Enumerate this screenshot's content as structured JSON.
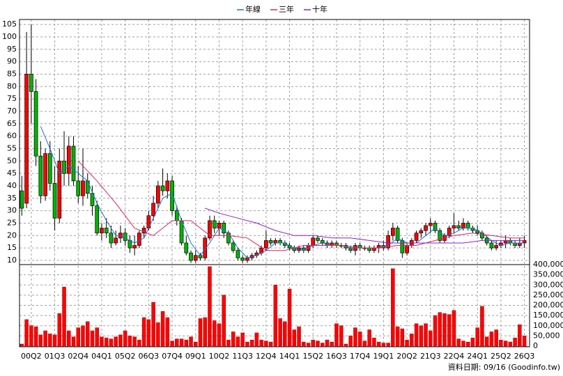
{
  "chart_data": {
    "type": "candlestick",
    "legend": "top",
    "grid": true,
    "up_color": "#ff0000",
    "down_color": "#00b400",
    "xlim": [
      -0.5,
      108.1
    ],
    "xticks": [
      {
        "value": 2,
        "label": "00Q2"
      },
      {
        "value": 7,
        "label": "01Q3"
      },
      {
        "value": 12,
        "label": "02Q4"
      },
      {
        "value": 17,
        "label": "04Q1"
      },
      {
        "value": 22,
        "label": "05Q2"
      },
      {
        "value": 27,
        "label": "06Q3"
      },
      {
        "value": 32,
        "label": "07Q4"
      },
      {
        "value": 37,
        "label": "09Q1"
      },
      {
        "value": 42,
        "label": "10Q2"
      },
      {
        "value": 47,
        "label": "11Q3"
      },
      {
        "value": 52,
        "label": "12Q4"
      },
      {
        "value": 57,
        "label": "14Q1"
      },
      {
        "value": 62,
        "label": "15Q2"
      },
      {
        "value": 67,
        "label": "16Q3"
      },
      {
        "value": 72,
        "label": "17Q4"
      },
      {
        "value": 77,
        "label": "19Q1"
      },
      {
        "value": 82,
        "label": "20Q2"
      },
      {
        "value": 87,
        "label": "21Q3"
      },
      {
        "value": 92,
        "label": "22Q4"
      },
      {
        "value": 97,
        "label": "24Q1"
      },
      {
        "value": 102,
        "label": "25Q2"
      },
      {
        "value": 107,
        "label": "26Q3"
      }
    ],
    "ylim": [
      8.3,
      107
    ],
    "yticks": [
      10,
      15,
      20,
      25,
      30,
      35,
      40,
      45,
      50,
      55,
      60,
      65,
      70,
      75,
      80,
      85,
      90,
      95,
      100,
      105
    ],
    "open": [
      38,
      33,
      85,
      78,
      52,
      36,
      53,
      41,
      27,
      50,
      45,
      56,
      42,
      36,
      42,
      37,
      32,
      21,
      23,
      21,
      17,
      19,
      21,
      18,
      15,
      16,
      21,
      23,
      28,
      33,
      40,
      38,
      42,
      30,
      26,
      17,
      13,
      10,
      12,
      11,
      19,
      26,
      23,
      25,
      21,
      17,
      14,
      11,
      10,
      11,
      12,
      13,
      15,
      18,
      17,
      18,
      17,
      16,
      15,
      14,
      15,
      14,
      16,
      19,
      18,
      17,
      16,
      17,
      16,
      16,
      15,
      14,
      16,
      15,
      15,
      14,
      15,
      16,
      15,
      20,
      23,
      18,
      13,
      16,
      18,
      21,
      22,
      24,
      25,
      22,
      18,
      20,
      23,
      24,
      23,
      25,
      23,
      22,
      21,
      19,
      17,
      15,
      16,
      17,
      18,
      17,
      16,
      17
    ],
    "high": [
      44,
      102,
      105,
      83,
      58,
      55,
      58,
      48,
      55,
      62,
      60,
      60,
      48,
      55,
      45,
      40,
      34,
      25,
      27,
      24,
      22,
      24,
      23,
      20,
      20,
      22,
      24,
      30,
      36,
      42,
      47,
      45,
      44,
      32,
      27,
      20,
      14,
      14,
      13,
      20,
      28,
      28,
      26,
      26,
      22,
      18,
      15,
      12,
      12,
      13,
      14,
      16,
      22,
      19,
      19,
      19,
      18,
      17,
      16,
      16,
      16,
      17,
      20,
      20,
      19,
      18,
      18,
      18,
      17,
      17,
      16,
      17,
      17,
      16,
      16,
      16,
      17,
      18,
      22,
      25,
      24,
      19,
      17,
      19,
      22,
      23,
      25,
      27,
      26,
      23,
      21,
      24,
      29,
      26,
      27,
      26,
      24,
      24,
      22,
      20,
      18,
      18,
      18,
      20,
      19,
      18,
      19,
      20
    ],
    "low": [
      28,
      31,
      65,
      48,
      33,
      34,
      38,
      22,
      25,
      40,
      40,
      40,
      33,
      32,
      35,
      28,
      20,
      18,
      19,
      15,
      16,
      17,
      16,
      13,
      12,
      15,
      19,
      22,
      26,
      31,
      36,
      35,
      28,
      24,
      16,
      12,
      9,
      9,
      10,
      10,
      18,
      21,
      20,
      19,
      16,
      13,
      10,
      9,
      9,
      10,
      11,
      12,
      14,
      16,
      16,
      16,
      15,
      14,
      13,
      13,
      13,
      13,
      15,
      17,
      16,
      15,
      15,
      15,
      15,
      14,
      13,
      12,
      14,
      14,
      13,
      13,
      13,
      14,
      14,
      18,
      17,
      11,
      12,
      15,
      17,
      19,
      20,
      21,
      21,
      17,
      17,
      19,
      21,
      22,
      22,
      22,
      21,
      20,
      18,
      16,
      14,
      14,
      15,
      15,
      16,
      15,
      15,
      15
    ],
    "close": [
      31,
      85,
      78,
      52,
      36,
      53,
      41,
      27,
      50,
      45,
      56,
      42,
      36,
      42,
      37,
      32,
      21,
      23,
      21,
      17,
      19,
      21,
      18,
      15,
      16,
      21,
      23,
      28,
      33,
      40,
      38,
      42,
      30,
      26,
      17,
      13,
      10,
      12,
      11,
      19,
      26,
      23,
      25,
      21,
      17,
      14,
      11,
      10,
      11,
      12,
      13,
      15,
      18,
      17,
      18,
      17,
      16,
      15,
      14,
      15,
      14,
      16,
      19,
      18,
      17,
      16,
      17,
      16,
      16,
      15,
      14,
      16,
      15,
      15,
      14,
      15,
      16,
      15,
      20,
      23,
      18,
      13,
      16,
      18,
      21,
      22,
      24,
      25,
      22,
      18,
      20,
      23,
      24,
      23,
      25,
      23,
      22,
      21,
      19,
      17,
      15,
      16,
      17,
      18,
      17,
      16,
      17,
      18
    ],
    "series": [
      {
        "name": "年線",
        "color": "#1f6fd6",
        "x": [
          4,
          6,
          8,
          10,
          12,
          14,
          16,
          18,
          20,
          22,
          24,
          26,
          28,
          30,
          32,
          34,
          36,
          38,
          40,
          42,
          44,
          46,
          48,
          50,
          52,
          54,
          56,
          58,
          60,
          62,
          64,
          66,
          68,
          70,
          72,
          74,
          76,
          78,
          80,
          82,
          84,
          86,
          88,
          90,
          92,
          94,
          96,
          98,
          100,
          102,
          104,
          106,
          107
        ],
        "values": [
          64,
          55,
          45,
          48,
          45,
          42,
          33,
          26,
          20,
          19,
          17,
          19,
          27,
          35,
          37,
          26,
          17,
          12,
          17,
          23,
          21,
          15,
          11,
          12,
          14,
          17,
          17,
          15,
          14,
          16,
          17,
          16,
          16,
          15,
          15,
          15,
          15,
          16,
          19,
          17,
          17,
          20,
          23,
          20,
          21,
          23,
          23,
          21,
          18,
          16,
          17,
          17,
          17
        ]
      },
      {
        "name": "三年",
        "color": "#e0206a",
        "x": [
          12,
          16,
          20,
          24,
          28,
          32,
          36,
          40,
          44,
          48,
          52,
          56,
          60,
          64,
          68,
          72,
          76,
          80,
          84,
          88,
          92,
          96,
          100,
          104,
          107
        ],
        "values": [
          50,
          42,
          33,
          23,
          20,
          26,
          26,
          20,
          20,
          19,
          14,
          14,
          16,
          16,
          16,
          15,
          15,
          16,
          16,
          18,
          20,
          21,
          20,
          19,
          19
        ]
      },
      {
        "name": "十年",
        "color": "#8a22c8",
        "x": [
          39,
          42,
          46,
          50,
          54,
          58,
          62,
          66,
          70,
          74,
          78,
          82,
          86,
          90,
          94,
          98,
          102,
          107
        ],
        "values": [
          31,
          29,
          27,
          25,
          22,
          20,
          20,
          19,
          19,
          18,
          17,
          17,
          17,
          17,
          17,
          18,
          18,
          18
        ]
      }
    ],
    "volume": {
      "color": "#ff0000",
      "axis": "y2",
      "values": [
        10000,
        130000,
        100000,
        95000,
        55000,
        75000,
        60000,
        55000,
        160000,
        290000,
        75000,
        45000,
        90000,
        100000,
        120000,
        75000,
        90000,
        45000,
        40000,
        35000,
        45000,
        55000,
        75000,
        50000,
        45000,
        30000,
        140000,
        130000,
        215000,
        115000,
        170000,
        140000,
        25000,
        35000,
        35000,
        30000,
        45000,
        20000,
        135000,
        140000,
        390000,
        125000,
        110000,
        250000,
        30000,
        70000,
        45000,
        65000,
        20000,
        30000,
        65000,
        30000,
        25000,
        20000,
        300000,
        135000,
        120000,
        280000,
        80000,
        95000,
        20000,
        15000,
        30000,
        25000,
        15000,
        30000,
        20000,
        110000,
        100000,
        10000,
        50000,
        90000,
        70000,
        25000,
        80000,
        40000,
        20000,
        15000,
        15000,
        380000,
        95000,
        85000,
        30000,
        60000,
        110000,
        100000,
        110000,
        75000,
        150000,
        165000,
        160000,
        155000,
        175000,
        35000,
        25000,
        20000,
        40000,
        90000,
        195000,
        45000,
        70000,
        80000,
        30000,
        25000,
        20000,
        40000,
        105000,
        50000
      ]
    },
    "y2lim": [
      0,
      400000
    ],
    "y2ticks": [
      0,
      {
        "value": 50000,
        "label": "50,000"
      },
      {
        "value": 100000,
        "label": "100,000"
      },
      {
        "value": 150000,
        "label": "150,000"
      },
      {
        "value": 200000,
        "label": "200,000"
      },
      {
        "value": 250000,
        "label": "250,000"
      },
      {
        "value": 300000,
        "label": "300,000"
      },
      {
        "value": 350000,
        "label": "350,000"
      },
      {
        "value": 400000,
        "label": "400,000"
      }
    ],
    "source_note": "資料日期: 09/16 (Goodinfo.tw)"
  }
}
